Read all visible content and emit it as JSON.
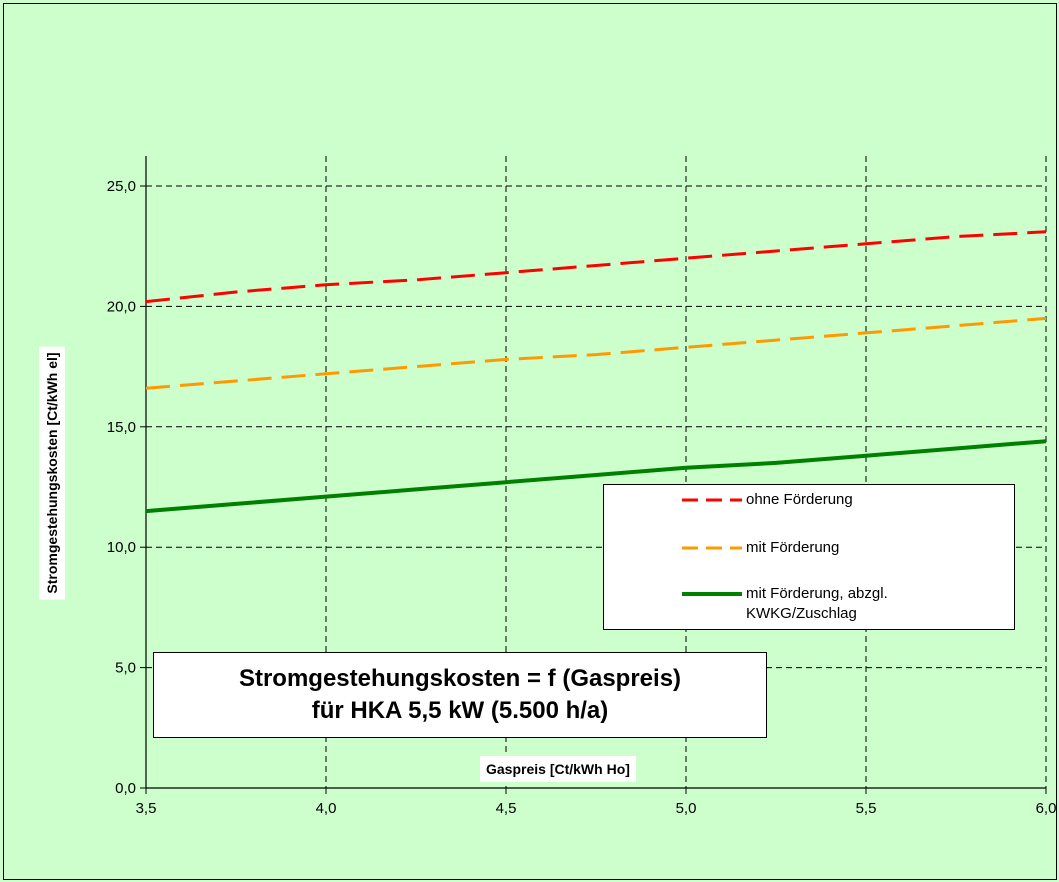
{
  "chart_data": {
    "type": "line",
    "title_lines": [
      "Stromgestehungskosten = f (Gaspreis)",
      "für HKA 5,5 kW  (5.500 h/a)"
    ],
    "xlabel": "Gaspreis [Ct/kWh Ho]",
    "ylabel": "Stromgestehungskosten [Ct/kWh el]",
    "xlim": [
      3.5,
      6.0
    ],
    "ylim": [
      0,
      25
    ],
    "x_ticks": [
      3.5,
      4.0,
      4.5,
      5.0,
      5.5,
      6.0
    ],
    "x_tick_labels": [
      "3,5",
      "4,0",
      "4,5",
      "5,0",
      "5,5",
      "6,0"
    ],
    "y_ticks": [
      0,
      5,
      10,
      15,
      20,
      25
    ],
    "y_tick_labels": [
      "0,0",
      "5,0",
      "10,0",
      "15,0",
      "20,0",
      "25,0"
    ],
    "grid": true,
    "legend_position": "right-middle",
    "x": [
      3.5,
      3.75,
      4.0,
      4.25,
      4.5,
      4.75,
      5.0,
      5.25,
      5.5,
      5.75,
      6.0
    ],
    "series": [
      {
        "name": "ohne Förderung",
        "color": "#ff0000",
        "style": "dashed",
        "values": [
          20.2,
          20.6,
          20.9,
          21.1,
          21.4,
          21.7,
          22.0,
          22.3,
          22.6,
          22.9,
          23.1
        ]
      },
      {
        "name": "mit Förderung",
        "color": "#ff9900",
        "style": "dashed",
        "values": [
          16.6,
          16.9,
          17.2,
          17.5,
          17.8,
          18.0,
          18.3,
          18.6,
          18.9,
          19.2,
          19.5
        ]
      },
      {
        "name": "mit Förderung, abzgl. KWKG/Zuschlag",
        "name_lines": [
          "mit Förderung, abzgl.",
          "KWKG/Zuschlag"
        ],
        "color": "#008000",
        "style": "solid",
        "values": [
          11.5,
          11.8,
          12.1,
          12.4,
          12.7,
          13.0,
          13.3,
          13.5,
          13.8,
          14.1,
          14.4
        ]
      }
    ]
  }
}
